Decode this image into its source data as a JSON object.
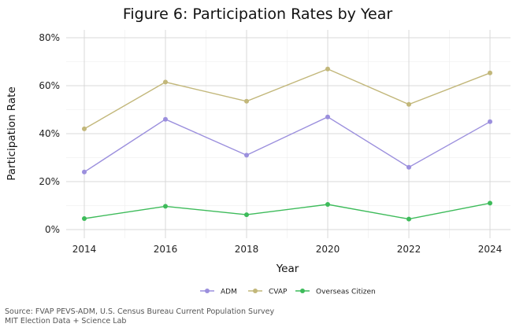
{
  "chart_data": {
    "type": "line",
    "title": "Figure 6: Participation Rates by Year",
    "xlabel": "Year",
    "ylabel": "Participation Rate",
    "x": [
      2014,
      2016,
      2018,
      2020,
      2022,
      2024
    ],
    "x_ticks": [
      "2014",
      "2016",
      "2018",
      "2020",
      "2022",
      "2024"
    ],
    "y_ticks": [
      "0%",
      "20%",
      "40%",
      "60%",
      "80%"
    ],
    "ylim": [
      0,
      80
    ],
    "grid": true,
    "legend_position": "bottom",
    "series": [
      {
        "name": "ADM",
        "color": "#9b8fdd",
        "values": [
          24,
          46,
          31,
          47,
          26,
          45
        ]
      },
      {
        "name": "CVAP",
        "color": "#c2b77a",
        "values": [
          42,
          61.5,
          53.5,
          67,
          52.2,
          65.3
        ]
      },
      {
        "name": "Overseas Citizen",
        "color": "#3dbb5a",
        "values": [
          4.6,
          9.7,
          6.2,
          10.5,
          4.4,
          11
        ]
      }
    ]
  },
  "caption": {
    "line1": "Source: FVAP PEVS-ADM, U.S. Census Bureau Current Population Survey",
    "line2": "MIT Election Data + Science Lab"
  }
}
